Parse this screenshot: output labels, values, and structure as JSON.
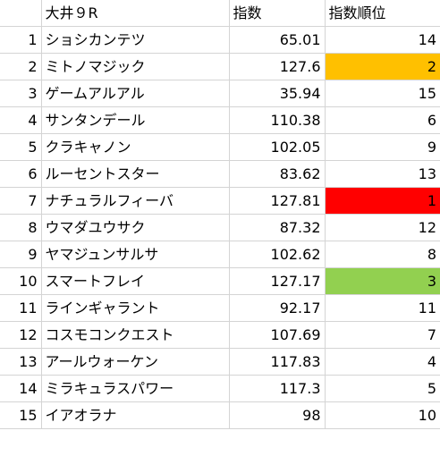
{
  "header": {
    "num": "",
    "name": "大井９R",
    "index": "指数",
    "rank": "指数順位"
  },
  "highlight_colors": {
    "rank_1": "#ff0000",
    "rank_2": "#ffc000",
    "rank_3": "#92d050"
  },
  "rows": [
    {
      "no": "1",
      "name": "ショシカンテツ",
      "index": "65.01",
      "rank": "14",
      "fill": ""
    },
    {
      "no": "2",
      "name": "ミトノマジック",
      "index": "127.6",
      "rank": "2",
      "fill": "#ffc000"
    },
    {
      "no": "3",
      "name": "ゲームアルアル",
      "index": "35.94",
      "rank": "15",
      "fill": ""
    },
    {
      "no": "4",
      "name": "サンタンデール",
      "index": "110.38",
      "rank": "6",
      "fill": ""
    },
    {
      "no": "5",
      "name": "クラキャノン",
      "index": "102.05",
      "rank": "9",
      "fill": ""
    },
    {
      "no": "6",
      "name": "ルーセントスター",
      "index": "83.62",
      "rank": "13",
      "fill": ""
    },
    {
      "no": "7",
      "name": "ナチュラルフィーバ",
      "index": "127.81",
      "rank": "1",
      "fill": "#ff0000"
    },
    {
      "no": "8",
      "name": "ウマダユウサク",
      "index": "87.32",
      "rank": "12",
      "fill": ""
    },
    {
      "no": "9",
      "name": "ヤマジュンサルサ",
      "index": "102.62",
      "rank": "8",
      "fill": ""
    },
    {
      "no": "10",
      "name": "スマートフレイ",
      "index": "127.17",
      "rank": "3",
      "fill": "#92d050"
    },
    {
      "no": "11",
      "name": "ラインギャラント",
      "index": "92.17",
      "rank": "11",
      "fill": ""
    },
    {
      "no": "12",
      "name": "コスモコンクエスト",
      "index": "107.69",
      "rank": "7",
      "fill": ""
    },
    {
      "no": "13",
      "name": "アールウォーケン",
      "index": "117.83",
      "rank": "4",
      "fill": ""
    },
    {
      "no": "14",
      "name": "ミラキュラスパワー",
      "index": "117.3",
      "rank": "5",
      "fill": ""
    },
    {
      "no": "15",
      "name": "イアオラナ",
      "index": "98",
      "rank": "10",
      "fill": ""
    }
  ]
}
